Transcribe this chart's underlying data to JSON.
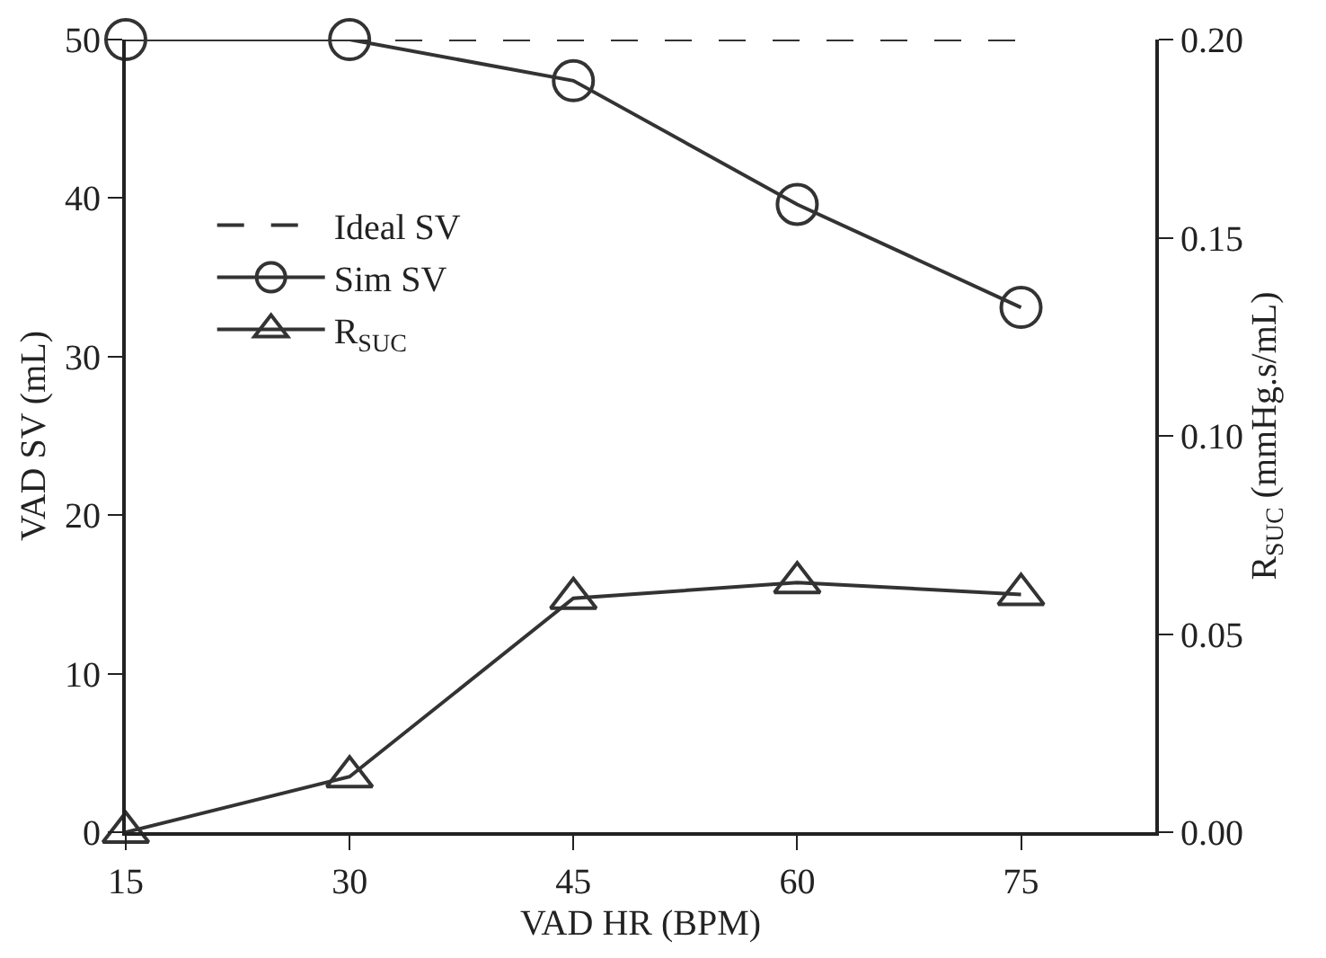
{
  "chart_data": {
    "type": "line",
    "xlabel": "VAD HR (BPM)",
    "ylabel": "VAD SV (mL)",
    "y2label": "R$_{SUC}$ (mmHg.s/mL)",
    "x": [
      15,
      30,
      45,
      60,
      75
    ],
    "series": [
      {
        "name": "Ideal SV",
        "color": "#333333",
        "values": [
          50,
          50,
          50,
          50,
          50
        ],
        "line_style": "dashed",
        "marker": "none"
      },
      {
        "name": "Sim SV",
        "color": "#333333",
        "values": [
          50,
          50,
          47.4,
          39.6,
          33.1
        ],
        "line_style": "solid",
        "marker": "circle"
      },
      {
        "name": "R$_{SUC}$",
        "color": "#333333",
        "values": [
          0.0,
          0.014,
          0.059,
          0.063,
          0.06
        ],
        "line_style": "solid",
        "marker": "triangle",
        "axis": "y2"
      }
    ],
    "xlim": [
      15,
      84
    ],
    "xticks": [
      15,
      30,
      45,
      60,
      75
    ],
    "ylim": [
      0,
      50
    ],
    "yticks": [
      0,
      10,
      20,
      30,
      40,
      50
    ],
    "y2lim": [
      0,
      0.2
    ],
    "y2ticks": [
      {
        "value": 0,
        "label": "0.00"
      },
      {
        "value": 0.05,
        "label": "0.05"
      },
      {
        "value": 0.1,
        "label": "0.10"
      },
      {
        "value": 0.15,
        "label": "0.15"
      },
      {
        "value": 0.2,
        "label": "0.20"
      }
    ],
    "legend": "left"
  }
}
